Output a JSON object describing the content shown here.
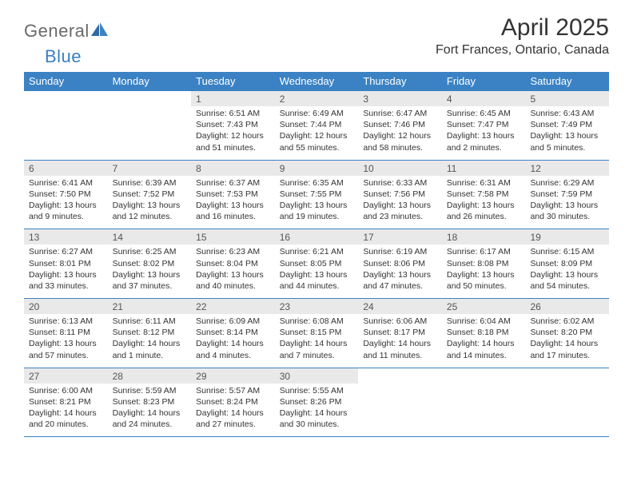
{
  "brand": {
    "text1": "General",
    "text2": "Blue"
  },
  "title": "April 2025",
  "location": "Fort Frances, Ontario, Canada",
  "colors": {
    "header_bar": "#3a82c4",
    "daynum_bg": "#e9e9e9",
    "text": "#333333",
    "logo_gray": "#6a6a6a",
    "logo_blue": "#3a7fc4",
    "rule": "#3a82c4",
    "background": "#ffffff"
  },
  "typography": {
    "title_fontsize": 30,
    "location_fontsize": 16,
    "dow_fontsize": 13,
    "daynum_fontsize": 12,
    "body_fontsize": 10.5,
    "font_family": "Arial"
  },
  "dow": [
    "Sunday",
    "Monday",
    "Tuesday",
    "Wednesday",
    "Thursday",
    "Friday",
    "Saturday"
  ],
  "weeks": [
    [
      {
        "n": "",
        "sr": "",
        "ss": "",
        "dl": ""
      },
      {
        "n": "",
        "sr": "",
        "ss": "",
        "dl": ""
      },
      {
        "n": "1",
        "sr": "Sunrise: 6:51 AM",
        "ss": "Sunset: 7:43 PM",
        "dl": "Daylight: 12 hours and 51 minutes."
      },
      {
        "n": "2",
        "sr": "Sunrise: 6:49 AM",
        "ss": "Sunset: 7:44 PM",
        "dl": "Daylight: 12 hours and 55 minutes."
      },
      {
        "n": "3",
        "sr": "Sunrise: 6:47 AM",
        "ss": "Sunset: 7:46 PM",
        "dl": "Daylight: 12 hours and 58 minutes."
      },
      {
        "n": "4",
        "sr": "Sunrise: 6:45 AM",
        "ss": "Sunset: 7:47 PM",
        "dl": "Daylight: 13 hours and 2 minutes."
      },
      {
        "n": "5",
        "sr": "Sunrise: 6:43 AM",
        "ss": "Sunset: 7:49 PM",
        "dl": "Daylight: 13 hours and 5 minutes."
      }
    ],
    [
      {
        "n": "6",
        "sr": "Sunrise: 6:41 AM",
        "ss": "Sunset: 7:50 PM",
        "dl": "Daylight: 13 hours and 9 minutes."
      },
      {
        "n": "7",
        "sr": "Sunrise: 6:39 AM",
        "ss": "Sunset: 7:52 PM",
        "dl": "Daylight: 13 hours and 12 minutes."
      },
      {
        "n": "8",
        "sr": "Sunrise: 6:37 AM",
        "ss": "Sunset: 7:53 PM",
        "dl": "Daylight: 13 hours and 16 minutes."
      },
      {
        "n": "9",
        "sr": "Sunrise: 6:35 AM",
        "ss": "Sunset: 7:55 PM",
        "dl": "Daylight: 13 hours and 19 minutes."
      },
      {
        "n": "10",
        "sr": "Sunrise: 6:33 AM",
        "ss": "Sunset: 7:56 PM",
        "dl": "Daylight: 13 hours and 23 minutes."
      },
      {
        "n": "11",
        "sr": "Sunrise: 6:31 AM",
        "ss": "Sunset: 7:58 PM",
        "dl": "Daylight: 13 hours and 26 minutes."
      },
      {
        "n": "12",
        "sr": "Sunrise: 6:29 AM",
        "ss": "Sunset: 7:59 PM",
        "dl": "Daylight: 13 hours and 30 minutes."
      }
    ],
    [
      {
        "n": "13",
        "sr": "Sunrise: 6:27 AM",
        "ss": "Sunset: 8:01 PM",
        "dl": "Daylight: 13 hours and 33 minutes."
      },
      {
        "n": "14",
        "sr": "Sunrise: 6:25 AM",
        "ss": "Sunset: 8:02 PM",
        "dl": "Daylight: 13 hours and 37 minutes."
      },
      {
        "n": "15",
        "sr": "Sunrise: 6:23 AM",
        "ss": "Sunset: 8:04 PM",
        "dl": "Daylight: 13 hours and 40 minutes."
      },
      {
        "n": "16",
        "sr": "Sunrise: 6:21 AM",
        "ss": "Sunset: 8:05 PM",
        "dl": "Daylight: 13 hours and 44 minutes."
      },
      {
        "n": "17",
        "sr": "Sunrise: 6:19 AM",
        "ss": "Sunset: 8:06 PM",
        "dl": "Daylight: 13 hours and 47 minutes."
      },
      {
        "n": "18",
        "sr": "Sunrise: 6:17 AM",
        "ss": "Sunset: 8:08 PM",
        "dl": "Daylight: 13 hours and 50 minutes."
      },
      {
        "n": "19",
        "sr": "Sunrise: 6:15 AM",
        "ss": "Sunset: 8:09 PM",
        "dl": "Daylight: 13 hours and 54 minutes."
      }
    ],
    [
      {
        "n": "20",
        "sr": "Sunrise: 6:13 AM",
        "ss": "Sunset: 8:11 PM",
        "dl": "Daylight: 13 hours and 57 minutes."
      },
      {
        "n": "21",
        "sr": "Sunrise: 6:11 AM",
        "ss": "Sunset: 8:12 PM",
        "dl": "Daylight: 14 hours and 1 minute."
      },
      {
        "n": "22",
        "sr": "Sunrise: 6:09 AM",
        "ss": "Sunset: 8:14 PM",
        "dl": "Daylight: 14 hours and 4 minutes."
      },
      {
        "n": "23",
        "sr": "Sunrise: 6:08 AM",
        "ss": "Sunset: 8:15 PM",
        "dl": "Daylight: 14 hours and 7 minutes."
      },
      {
        "n": "24",
        "sr": "Sunrise: 6:06 AM",
        "ss": "Sunset: 8:17 PM",
        "dl": "Daylight: 14 hours and 11 minutes."
      },
      {
        "n": "25",
        "sr": "Sunrise: 6:04 AM",
        "ss": "Sunset: 8:18 PM",
        "dl": "Daylight: 14 hours and 14 minutes."
      },
      {
        "n": "26",
        "sr": "Sunrise: 6:02 AM",
        "ss": "Sunset: 8:20 PM",
        "dl": "Daylight: 14 hours and 17 minutes."
      }
    ],
    [
      {
        "n": "27",
        "sr": "Sunrise: 6:00 AM",
        "ss": "Sunset: 8:21 PM",
        "dl": "Daylight: 14 hours and 20 minutes."
      },
      {
        "n": "28",
        "sr": "Sunrise: 5:59 AM",
        "ss": "Sunset: 8:23 PM",
        "dl": "Daylight: 14 hours and 24 minutes."
      },
      {
        "n": "29",
        "sr": "Sunrise: 5:57 AM",
        "ss": "Sunset: 8:24 PM",
        "dl": "Daylight: 14 hours and 27 minutes."
      },
      {
        "n": "30",
        "sr": "Sunrise: 5:55 AM",
        "ss": "Sunset: 8:26 PM",
        "dl": "Daylight: 14 hours and 30 minutes."
      },
      {
        "n": "",
        "sr": "",
        "ss": "",
        "dl": ""
      },
      {
        "n": "",
        "sr": "",
        "ss": "",
        "dl": ""
      },
      {
        "n": "",
        "sr": "",
        "ss": "",
        "dl": ""
      }
    ]
  ]
}
